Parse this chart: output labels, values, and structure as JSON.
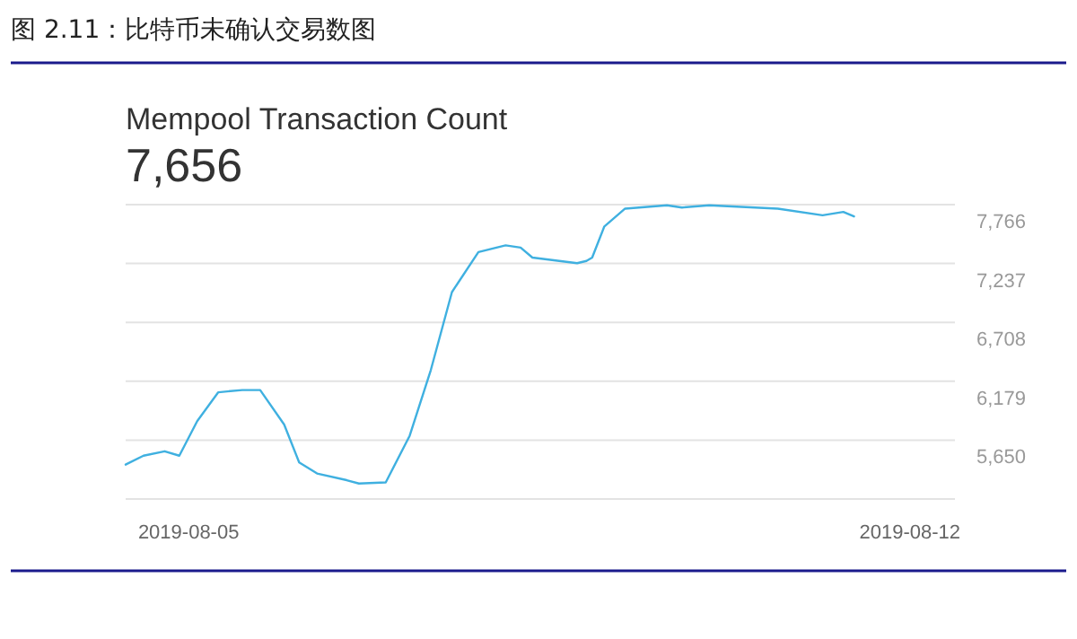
{
  "chart_data": {
    "type": "line",
    "title": "Mempool Transaction Count",
    "subtitle": "7,656",
    "annotations": [
      "图 2.11：比特币未确认交易数图"
    ],
    "x": [
      "2019-08-04T09:20",
      "2019-08-04T13:30",
      "2019-08-04T18:25",
      "2019-08-04T21:50",
      "2019-08-05T02:00",
      "2019-08-05T06:55",
      "2019-08-05T12:30",
      "2019-08-05T16:40",
      "2019-08-05T22:15",
      "2019-08-06T01:45",
      "2019-08-06T05:55",
      "2019-08-06T12:50",
      "2019-08-06T15:40",
      "2019-08-06T21:55",
      "2019-08-07T03:30",
      "2019-08-07T08:25",
      "2019-08-07T13:20",
      "2019-08-07T19:30",
      "2019-08-08T01:50",
      "2019-08-08T05:20",
      "2019-08-08T08:05",
      "2019-08-08T18:30",
      "2019-08-08T20:40",
      "2019-08-08T22:00",
      "2019-08-09T00:50",
      "2019-08-09T05:40",
      "2019-08-09T15:25",
      "2019-08-09T18:55",
      "2019-08-10T01:15",
      "2019-08-10T17:15",
      "2019-08-11T03:40",
      "2019-08-11T08:30",
      "2019-08-11T11:00"
    ],
    "series": [
      {
        "color": "#3fb0e0",
        "values": [
          5430,
          5510,
          5550,
          5510,
          5820,
          6080,
          6100,
          6100,
          5790,
          5450,
          5350,
          5290,
          5260,
          5270,
          5690,
          6280,
          6980,
          7340,
          7400,
          7380,
          7290,
          7240,
          7260,
          7290,
          7570,
          7730,
          7760,
          7740,
          7760,
          7730,
          7670,
          7700,
          7660
        ]
      }
    ],
    "xlim": [
      "2019-08-04T09:20",
      "2019-08-12T10:30"
    ],
    "xticks": [
      "2019-08-05",
      "2019-08-12"
    ],
    "ylim": [
      5121,
      7766
    ],
    "yticks": [
      {
        "value": 7766,
        "label": "7,766"
      },
      {
        "value": 7237,
        "label": "7,237"
      },
      {
        "value": 6708,
        "label": "6,708"
      },
      {
        "value": 6179,
        "label": "6,179"
      },
      {
        "value": 5650,
        "label": "5,650"
      },
      {
        "value": 5121,
        "label": null
      }
    ],
    "grid": "y",
    "marker": "none",
    "line_style": "solid"
  }
}
